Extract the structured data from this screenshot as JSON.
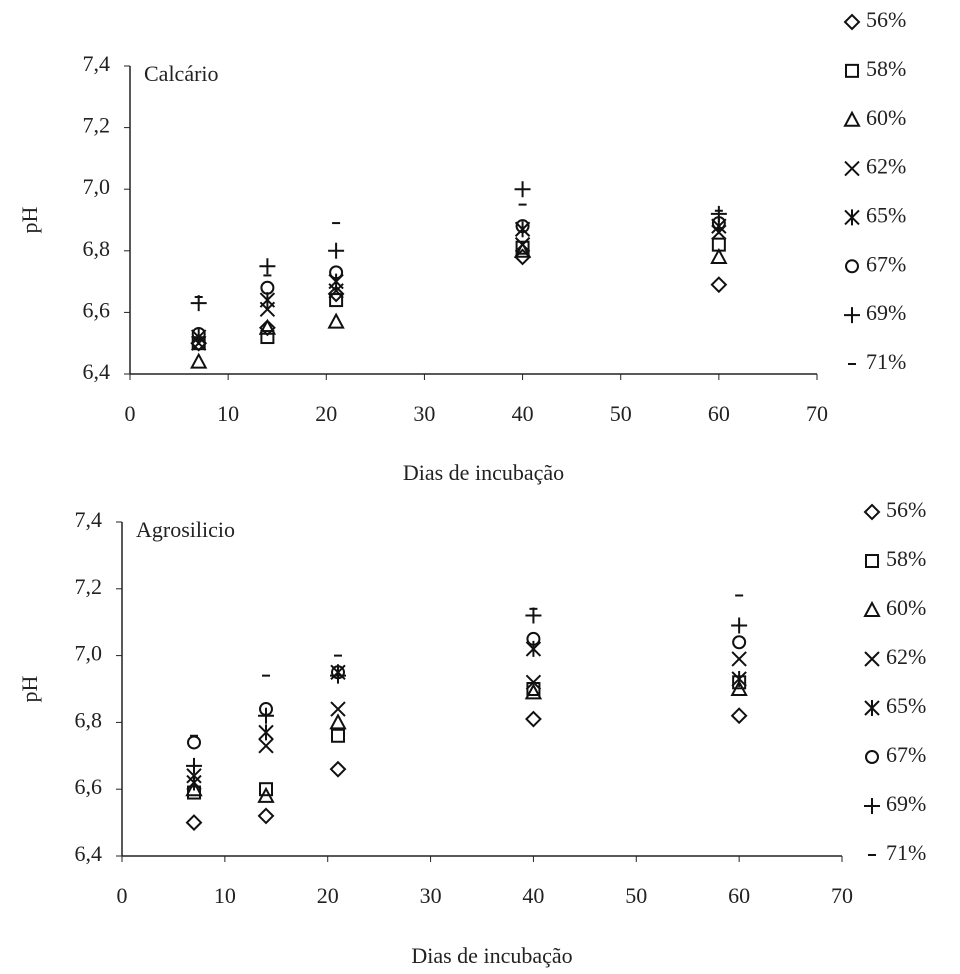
{
  "chart_data": [
    {
      "type": "scatter",
      "title": "Calcário",
      "x_label": "Dias de incubação",
      "y_label": "pH",
      "xlim": [
        0,
        70
      ],
      "xticks": [
        0,
        10,
        20,
        30,
        40,
        50,
        60,
        70
      ],
      "ylim": [
        6.4,
        7.4
      ],
      "yticks": [
        {
          "value": 6.4,
          "label": "6,4"
        },
        {
          "value": 6.6,
          "label": "6,6"
        },
        {
          "value": 6.8,
          "label": "6,8"
        },
        {
          "value": 7.0,
          "label": "7,0"
        },
        {
          "value": 7.2,
          "label": "7,2"
        },
        {
          "value": 7.4,
          "label": "7,4"
        }
      ],
      "x": [
        7,
        14,
        21,
        40,
        60
      ],
      "series": [
        {
          "name": "56%",
          "marker": "diamond",
          "color": "#111111",
          "values": [
            6.5,
            6.55,
            6.66,
            6.78,
            6.69
          ]
        },
        {
          "name": "58%",
          "marker": "square",
          "color": "#111111",
          "values": [
            6.5,
            6.52,
            6.64,
            6.81,
            6.82
          ]
        },
        {
          "name": "60%",
          "marker": "triangle",
          "color": "#111111",
          "values": [
            6.44,
            6.55,
            6.57,
            6.8,
            6.78
          ]
        },
        {
          "name": "62%",
          "marker": "x",
          "color": "#111111",
          "values": [
            6.5,
            6.61,
            6.67,
            6.82,
            6.86
          ]
        },
        {
          "name": "65%",
          "marker": "star",
          "color": "#111111",
          "values": [
            6.52,
            6.64,
            6.7,
            6.87,
            6.88
          ]
        },
        {
          "name": "67%",
          "marker": "circle",
          "color": "#111111",
          "values": [
            6.53,
            6.68,
            6.73,
            6.88,
            6.89
          ]
        },
        {
          "name": "69%",
          "marker": "plus",
          "color": "#111111",
          "values": [
            6.63,
            6.75,
            6.8,
            7.0,
            6.92
          ]
        },
        {
          "name": "71%",
          "marker": "dash",
          "color": "#111111",
          "values": [
            6.65,
            6.72,
            6.89,
            6.95,
            6.93
          ]
        }
      ]
    },
    {
      "type": "scatter",
      "title": "Agrosilicio",
      "x_label": "Dias de incubação",
      "y_label": "pH",
      "xlim": [
        0,
        70
      ],
      "xticks": [
        0,
        10,
        20,
        30,
        40,
        50,
        60,
        70
      ],
      "ylim": [
        6.4,
        7.4
      ],
      "yticks": [
        {
          "value": 6.4,
          "label": "6,4"
        },
        {
          "value": 6.6,
          "label": "6,6"
        },
        {
          "value": 6.8,
          "label": "6,8"
        },
        {
          "value": 7.0,
          "label": "7,0"
        },
        {
          "value": 7.2,
          "label": "7,2"
        },
        {
          "value": 7.4,
          "label": "7,4"
        }
      ],
      "x": [
        7,
        14,
        21,
        40,
        60
      ],
      "series": [
        {
          "name": "56%",
          "marker": "diamond",
          "color": "#111111",
          "values": [
            6.5,
            6.52,
            6.66,
            6.81,
            6.82
          ]
        },
        {
          "name": "58%",
          "marker": "square",
          "color": "#111111",
          "values": [
            6.59,
            6.6,
            6.76,
            6.9,
            6.92
          ]
        },
        {
          "name": "60%",
          "marker": "triangle",
          "color": "#111111",
          "values": [
            6.6,
            6.58,
            6.8,
            6.89,
            6.9
          ]
        },
        {
          "name": "62%",
          "marker": "x",
          "color": "#111111",
          "values": [
            6.64,
            6.73,
            6.84,
            6.92,
            6.99
          ]
        },
        {
          "name": "65%",
          "marker": "star",
          "color": "#111111",
          "values": [
            6.62,
            6.77,
            6.95,
            7.02,
            6.93
          ]
        },
        {
          "name": "67%",
          "marker": "circle",
          "color": "#111111",
          "values": [
            6.74,
            6.84,
            6.95,
            7.05,
            7.04
          ]
        },
        {
          "name": "69%",
          "marker": "plus",
          "color": "#111111",
          "values": [
            6.67,
            6.82,
            6.94,
            7.12,
            7.09
          ]
        },
        {
          "name": "71%",
          "marker": "dash",
          "color": "#111111",
          "values": [
            6.76,
            6.94,
            7.0,
            7.14,
            7.18
          ]
        }
      ]
    }
  ]
}
